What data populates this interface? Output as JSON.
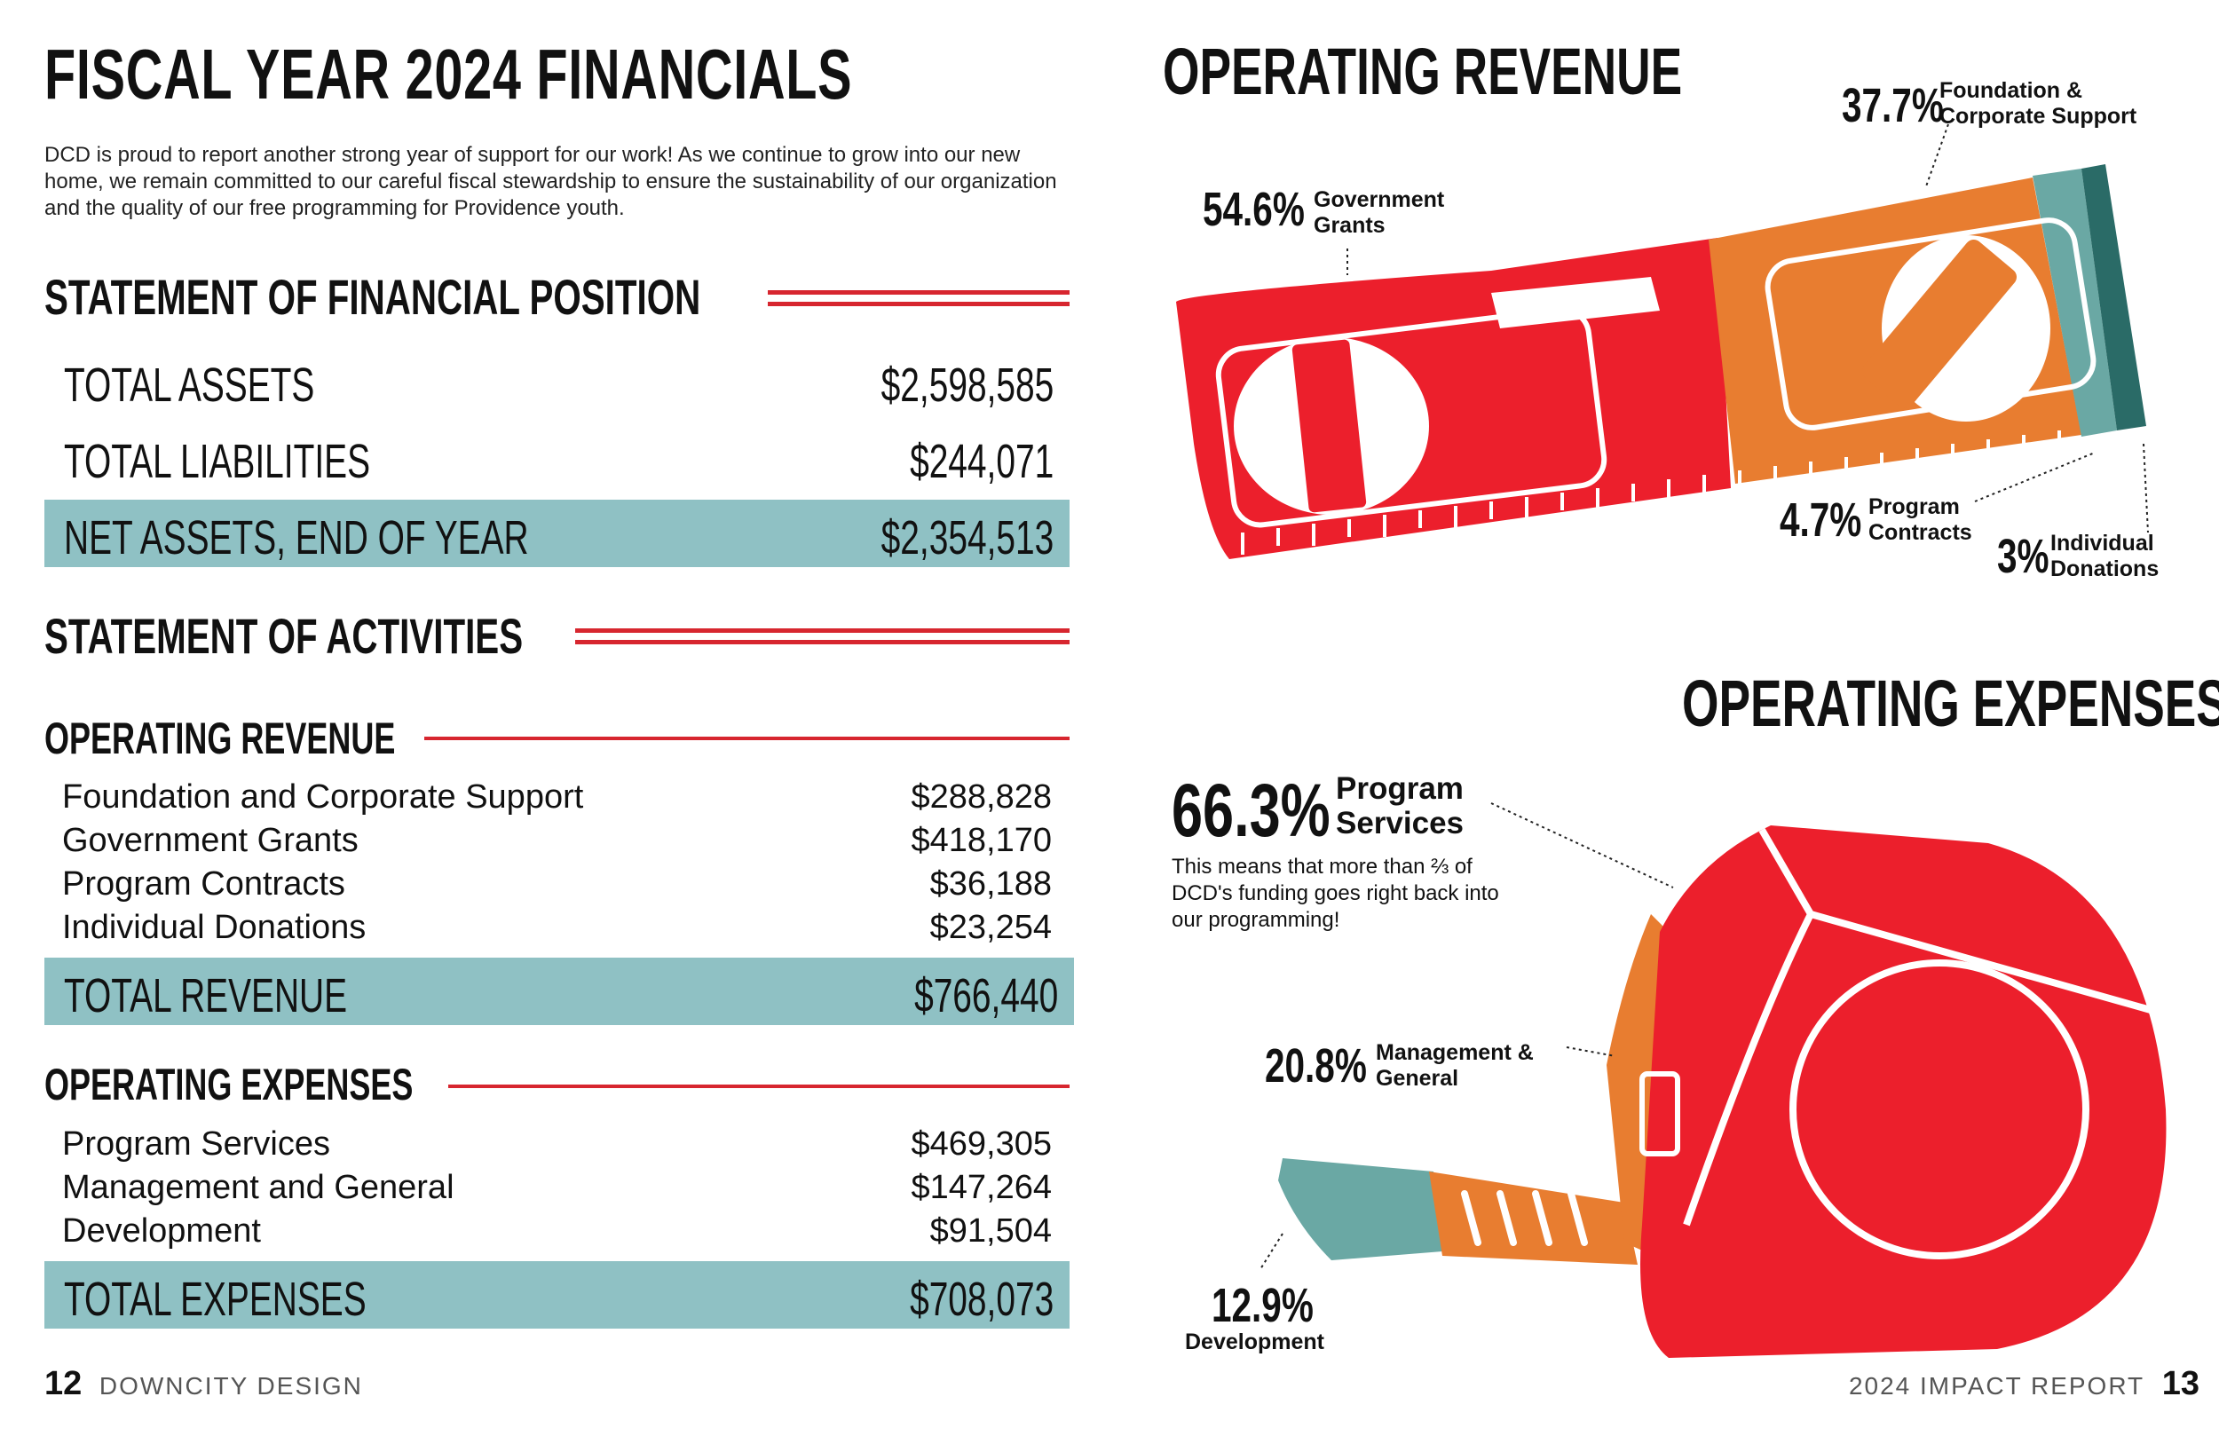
{
  "title": "FISCAL YEAR 2024 FINANCIALS",
  "intro": "DCD is proud to report another strong year of support for our work! As we continue to grow into our new home, we remain committed to our careful fiscal stewardship to ensure the sustainability of our organization and the quality of our free programming for Providence youth.",
  "position": {
    "heading": "STATEMENT OF FINANCIAL POSITION",
    "rows": [
      {
        "label": "TOTAL ASSETS",
        "value": "$2,598,585"
      },
      {
        "label": "TOTAL LIABILITIES",
        "value": "$244,071"
      },
      {
        "label": "NET ASSETS, END OF YEAR",
        "value": "$2,354,513"
      }
    ]
  },
  "activities": {
    "heading": "STATEMENT OF ACTIVITIES",
    "revenue": {
      "heading": "OPERATING REVENUE",
      "items": [
        {
          "label": "Foundation and Corporate Support",
          "value": "$288,828"
        },
        {
          "label": "Government Grants",
          "value": "$418,170"
        },
        {
          "label": "Program Contracts",
          "value": "$36,188"
        },
        {
          "label": "Individual Donations",
          "value": "$23,254"
        }
      ],
      "total_label": "TOTAL REVENUE",
      "total_value": "$766,440"
    },
    "expenses": {
      "heading": "OPERATING EXPENSES",
      "items": [
        {
          "label": "Program Services",
          "value": "$469,305"
        },
        {
          "label": "Management and General",
          "value": "$147,264"
        },
        {
          "label": "Development",
          "value": "$91,504"
        }
      ],
      "total_label": "TOTAL EXPENSES",
      "total_value": "$708,073"
    }
  },
  "revenue_chart": {
    "title": "OPERATING REVENUE",
    "slices": [
      {
        "pct": "54.6%",
        "label1": "Government",
        "label2": "Grants",
        "value": 54.6,
        "color": "#ec1f2c"
      },
      {
        "pct": "37.7%",
        "label1": "Foundation &",
        "label2": "Corporate Support",
        "value": 37.7,
        "color": "#e87d30"
      },
      {
        "pct": "4.7%",
        "label1": "Program",
        "label2": "Contracts",
        "value": 4.7,
        "color": "#6aa8a4"
      },
      {
        "pct": "3%",
        "label1": "Individual",
        "label2": "Donations",
        "value": 3,
        "color": "#2a6b67"
      }
    ]
  },
  "expense_chart": {
    "title": "OPERATING EXPENSES",
    "slices": [
      {
        "pct": "66.3%",
        "label1": "Program",
        "label2": "Services",
        "value": 66.3,
        "color": "#ec1f2c"
      },
      {
        "pct": "20.8%",
        "label1": "Management &",
        "label2": "General",
        "value": 20.8,
        "color": "#e87d30"
      },
      {
        "pct": "12.9%",
        "label1": "Development",
        "label2": "",
        "value": 12.9,
        "color": "#6aa8a4"
      }
    ],
    "note": "This means that more than ⅔ of DCD's funding goes right back into our programming!"
  },
  "footer": {
    "left_page": "12",
    "left_text": "DOWNCITY DESIGN",
    "right_text": "2024 IMPACT REPORT",
    "right_page": "13"
  }
}
